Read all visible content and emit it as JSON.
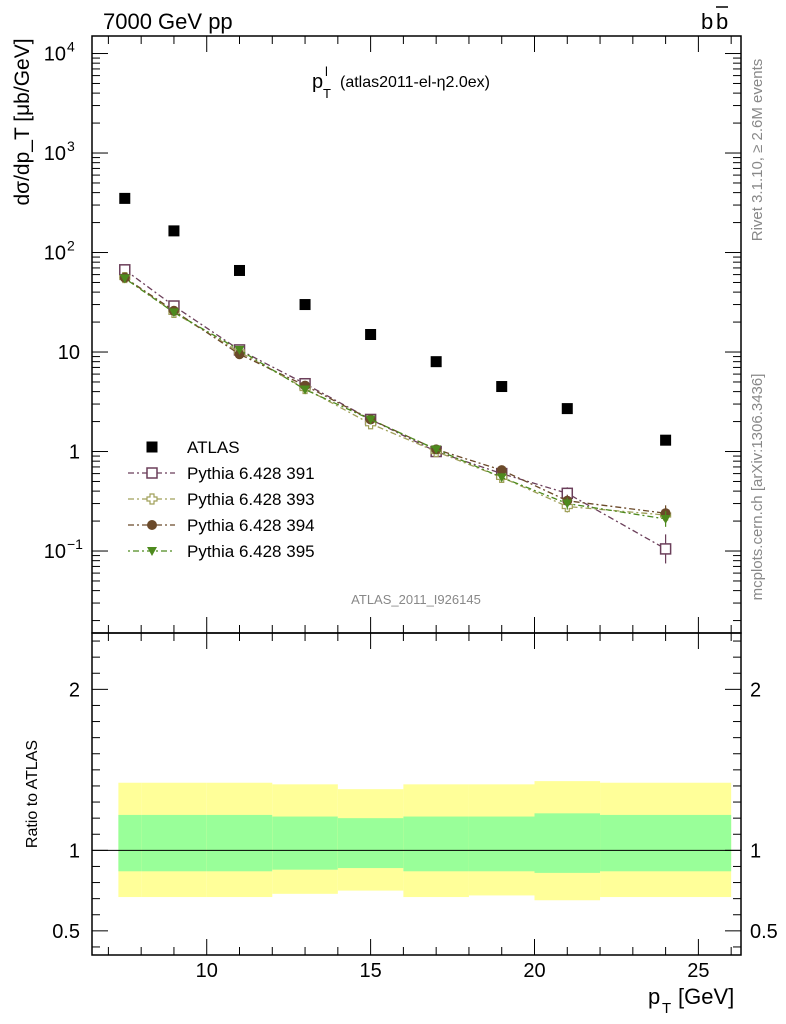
{
  "header": {
    "left": "7000 GeV pp",
    "right_main": "b",
    "right_bar": "b"
  },
  "side_labels": {
    "rivet": "Rivet 3.1.10, ≥ 2.6M events",
    "mcplots": "mcplots.cern.ch [arXiv:1306.3436]"
  },
  "colors": {
    "atlas": "#000000",
    "p391": "#6b3f5a",
    "p393": "#a0a05a",
    "p394": "#6b4a2a",
    "p395": "#4e8a1e",
    "band_inner": "#99ff99",
    "band_outer": "#ffff99"
  },
  "chart_data": [
    {
      "type": "scatter",
      "title_main": "p",
      "title_sup": "l",
      "title_sub": "T",
      "title_rest": "(atlas2011-el-η2.0ex)",
      "ylabel": "dσ/dp_T [μb/GeV]",
      "watermark": "ATLAS_2011_I926145",
      "yscale": "log",
      "ylim": [
        0.015,
        15000
      ],
      "xlim": [
        6.5,
        26.3
      ],
      "y_tick_labels": [
        {
          "v": 0.1,
          "base": "10",
          "exp": "−1"
        },
        {
          "v": 1,
          "base": "1",
          "exp": ""
        },
        {
          "v": 10,
          "base": "10",
          "exp": ""
        },
        {
          "v": 100,
          "base": "10",
          "exp": "2"
        },
        {
          "v": 1000,
          "base": "10",
          "exp": "3"
        },
        {
          "v": 10000,
          "base": "10",
          "exp": "4"
        }
      ],
      "legend_placement": "lower-left",
      "series": [
        {
          "name": "ATLAS",
          "key": "atlas",
          "marker": "square-filled",
          "x": [
            7.5,
            9,
            11,
            13,
            15,
            17,
            19,
            21,
            24
          ],
          "y": [
            350,
            165,
            66,
            30,
            15,
            8,
            4.5,
            2.7,
            1.3
          ]
        },
        {
          "name": "Pythia 6.428 391",
          "key": "p391",
          "marker": "square-open",
          "x": [
            7.5,
            9,
            11,
            13,
            15,
            17,
            19,
            21,
            24
          ],
          "y": [
            67,
            29,
            10.5,
            4.8,
            2.1,
            1.0,
            0.6,
            0.38,
            0.105
          ],
          "err": [
            0.08,
            0.05,
            0.05,
            0.05,
            0.06,
            0.08,
            0.1,
            0.15,
            0.4
          ]
        },
        {
          "name": "Pythia 6.428 393",
          "key": "p393",
          "marker": "cross-open",
          "x": [
            7.5,
            9,
            11,
            13,
            15,
            17,
            19,
            21,
            24
          ],
          "y": [
            56,
            25,
            10,
            4.3,
            1.9,
            1.0,
            0.55,
            0.28,
            0.23
          ],
          "err": [
            0.05,
            0.05,
            0.05,
            0.05,
            0.06,
            0.08,
            0.1,
            0.15,
            0.2
          ]
        },
        {
          "name": "Pythia 6.428 394",
          "key": "p394",
          "marker": "circle-filled",
          "x": [
            7.5,
            9,
            11,
            13,
            15,
            17,
            19,
            21,
            24
          ],
          "y": [
            56,
            26,
            9.5,
            4.6,
            2.1,
            1.05,
            0.65,
            0.32,
            0.24
          ],
          "err": [
            0.05,
            0.05,
            0.05,
            0.05,
            0.06,
            0.08,
            0.1,
            0.15,
            0.2
          ]
        },
        {
          "name": "Pythia 6.428 395",
          "key": "p395",
          "marker": "triangle-down-filled",
          "x": [
            7.5,
            9,
            11,
            13,
            15,
            17,
            19,
            21,
            24
          ],
          "y": [
            55,
            25,
            10.5,
            4.2,
            2.1,
            1.05,
            0.55,
            0.3,
            0.21
          ],
          "err": [
            0.05,
            0.05,
            0.05,
            0.05,
            0.06,
            0.08,
            0.1,
            0.15,
            0.2
          ]
        }
      ]
    },
    {
      "type": "area",
      "ylabel": "Ratio to ATLAS",
      "xlabel": "p_T [GeV]",
      "ylim": [
        0.35,
        2.35
      ],
      "xlim": [
        6.5,
        26.3
      ],
      "x_tick_labels": [
        10,
        15,
        20,
        25
      ],
      "y_tick_labels": [
        "0.5",
        "1",
        "2"
      ],
      "reference": 1,
      "bands": [
        {
          "x0": 7,
          "x1": 8,
          "inner": [
            0.87,
            1.22
          ],
          "outer": [
            0.71,
            1.42
          ]
        },
        {
          "x0": 8,
          "x1": 10,
          "inner": [
            0.87,
            1.22
          ],
          "outer": [
            0.71,
            1.42
          ]
        },
        {
          "x0": 10,
          "x1": 12,
          "inner": [
            0.87,
            1.22
          ],
          "outer": [
            0.71,
            1.42
          ]
        },
        {
          "x0": 12,
          "x1": 14,
          "inner": [
            0.88,
            1.21
          ],
          "outer": [
            0.73,
            1.41
          ]
        },
        {
          "x0": 14,
          "x1": 16,
          "inner": [
            0.89,
            1.2
          ],
          "outer": [
            0.75,
            1.38
          ]
        },
        {
          "x0": 16,
          "x1": 18,
          "inner": [
            0.87,
            1.21
          ],
          "outer": [
            0.71,
            1.41
          ]
        },
        {
          "x0": 18,
          "x1": 20,
          "inner": [
            0.87,
            1.21
          ],
          "outer": [
            0.72,
            1.41
          ]
        },
        {
          "x0": 20,
          "x1": 22,
          "inner": [
            0.86,
            1.23
          ],
          "outer": [
            0.69,
            1.43
          ]
        },
        {
          "x0": 22,
          "x1": 26,
          "inner": [
            0.87,
            1.22
          ],
          "outer": [
            0.71,
            1.42
          ]
        }
      ]
    }
  ]
}
